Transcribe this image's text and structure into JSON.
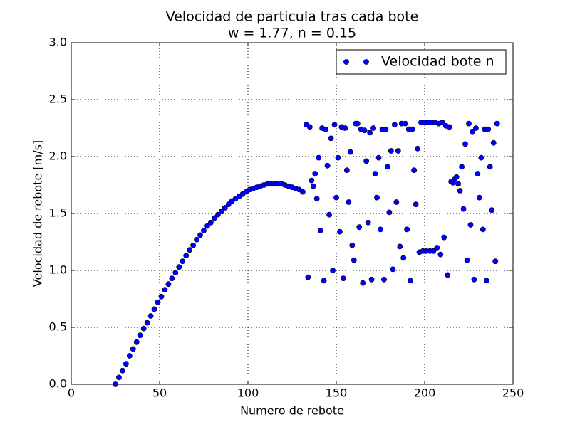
{
  "chart_data": {
    "type": "scatter",
    "title": "Velocidad de particula tras cada bote",
    "subtitle": "w = 1.77, n = 0.15",
    "x_label": "Numero de rebote",
    "y_label": "Velocidad de rebote [m/s]",
    "xlim": [
      0,
      250
    ],
    "xticks": [
      0,
      50,
      100,
      150,
      200,
      250
    ],
    "ylim": [
      0,
      3
    ],
    "yticks": [
      {
        "value": 0,
        "label": "0.0"
      },
      {
        "value": 0.5,
        "label": "0.5"
      },
      {
        "value": 1,
        "label": "1.0"
      },
      {
        "value": 1.5,
        "label": "1.5"
      },
      {
        "value": 2,
        "label": "2.0"
      },
      {
        "value": 2.5,
        "label": "2.5"
      },
      {
        "value": 3,
        "label": "3.0"
      }
    ],
    "grid": true,
    "legend": "upper right",
    "x": [
      25,
      27,
      29,
      31,
      33,
      35,
      37,
      39,
      41,
      43,
      45,
      47,
      49,
      51,
      53,
      55,
      57,
      59,
      61,
      63,
      65,
      67,
      69,
      71,
      73,
      75,
      77,
      79,
      81,
      83,
      85,
      87,
      89,
      91,
      93,
      95,
      97,
      99,
      101,
      103,
      105,
      107,
      109,
      111,
      113,
      115,
      117,
      119,
      121,
      123,
      125,
      127,
      129,
      131,
      133,
      134,
      135,
      136,
      137,
      138,
      139,
      140,
      141,
      142,
      143,
      144,
      145,
      146,
      147,
      148,
      149,
      150,
      151,
      152,
      153,
      154,
      155,
      156,
      157,
      158,
      159,
      160,
      161,
      162,
      163,
      164,
      165,
      166,
      167,
      168,
      169,
      170,
      171,
      172,
      173,
      174,
      175,
      176,
      177,
      178,
      179,
      180,
      181,
      182,
      183,
      184,
      185,
      186,
      187,
      188,
      189,
      190,
      191,
      192,
      193,
      194,
      195,
      196,
      197,
      198,
      199,
      200,
      201,
      202,
      203,
      204,
      205,
      206,
      207,
      208,
      209,
      210,
      211,
      212,
      213,
      214,
      215,
      216,
      217,
      218,
      219,
      220,
      221,
      222,
      223,
      224,
      225,
      226,
      227,
      228,
      229,
      230,
      231,
      232,
      233,
      234,
      235,
      236,
      237,
      238,
      239,
      240,
      241
    ],
    "series": [
      {
        "name": "Velocidad bote n",
        "color": "#0000ff",
        "values": [
          0,
          0.06,
          0.12,
          0.18,
          0.25,
          0.31,
          0.37,
          0.43,
          0.49,
          0.54,
          0.6,
          0.66,
          0.72,
          0.77,
          0.83,
          0.88,
          0.93,
          0.98,
          1.03,
          1.08,
          1.13,
          1.18,
          1.22,
          1.27,
          1.31,
          1.35,
          1.39,
          1.42,
          1.46,
          1.49,
          1.52,
          1.55,
          1.58,
          1.61,
          1.63,
          1.65,
          1.67,
          1.69,
          1.71,
          1.72,
          1.73,
          1.74,
          1.75,
          1.76,
          1.76,
          1.76,
          1.76,
          1.76,
          1.75,
          1.74,
          1.73,
          1.72,
          1.71,
          1.69,
          2.28,
          0.94,
          2.26,
          1.79,
          1.74,
          1.85,
          1.63,
          1.99,
          1.35,
          2.25,
          0.91,
          2.24,
          1.92,
          1.49,
          2.16,
          1.0,
          2.28,
          1.64,
          1.99,
          1.34,
          2.26,
          0.93,
          2.25,
          1.88,
          1.6,
          2.04,
          1.22,
          1.09,
          2.29,
          2.29,
          1.38,
          2.24,
          0.89,
          2.23,
          1.96,
          1.42,
          2.21,
          0.92,
          2.25,
          1.85,
          1.64,
          1.99,
          1.36,
          2.24,
          0.92,
          2.24,
          1.91,
          1.51,
          2.05,
          1.01,
          2.28,
          1.6,
          2.05,
          1.21,
          2.29,
          1.11,
          2.29,
          1.36,
          2.24,
          0.91,
          2.24,
          1.88,
          1.58,
          2.07,
          1.16,
          2.3,
          1.17,
          2.3,
          1.17,
          2.3,
          1.17,
          2.3,
          1.17,
          2.3,
          1.2,
          2.29,
          1.14,
          2.3,
          1.29,
          2.27,
          0.96,
          2.26,
          1.78,
          1.77,
          1.8,
          1.82,
          1.76,
          1.7,
          1.91,
          1.54,
          2.11,
          1.09,
          2.29,
          1.4,
          2.22,
          0.92,
          2.25,
          1.85,
          1.64,
          1.99,
          1.36,
          2.24,
          0.91,
          2.24,
          1.91,
          1.53,
          2.12,
          1.08,
          2.29
        ]
      }
    ]
  }
}
